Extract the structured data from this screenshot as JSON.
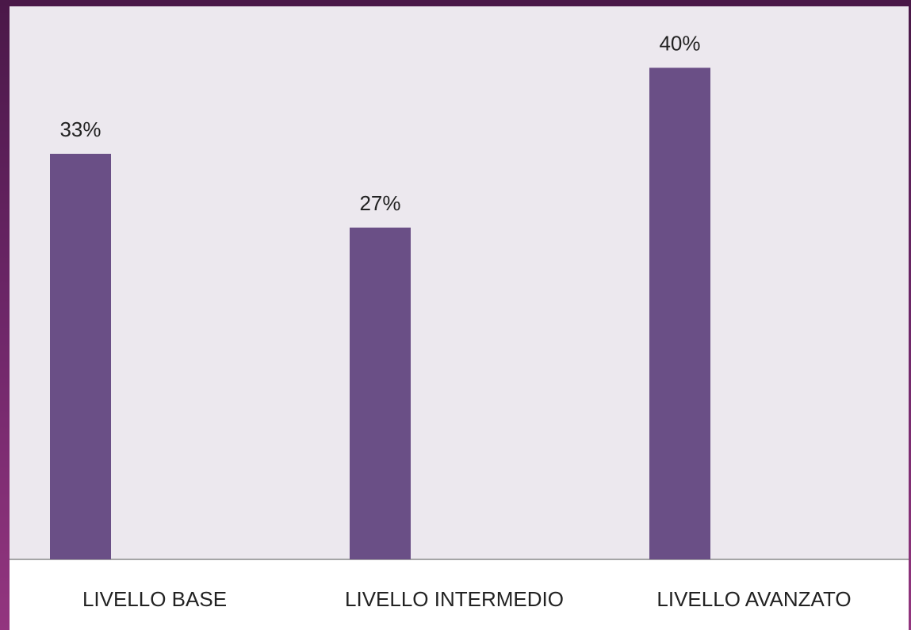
{
  "chart_data": {
    "type": "bar",
    "categories": [
      "LIVELLO BASE",
      "LIVELLO INTERMEDIO",
      "LIVELLO AVANZATO"
    ],
    "values": [
      33,
      27,
      40
    ],
    "data_labels": [
      "33%",
      "27%",
      "40%"
    ],
    "value_unit": "%",
    "ylim": [
      0,
      45
    ],
    "grid": false,
    "legend": "none",
    "colors": {
      "bar": "#6a4f86",
      "plot_background": "#ece8ee",
      "frame": "#6d2668"
    }
  }
}
